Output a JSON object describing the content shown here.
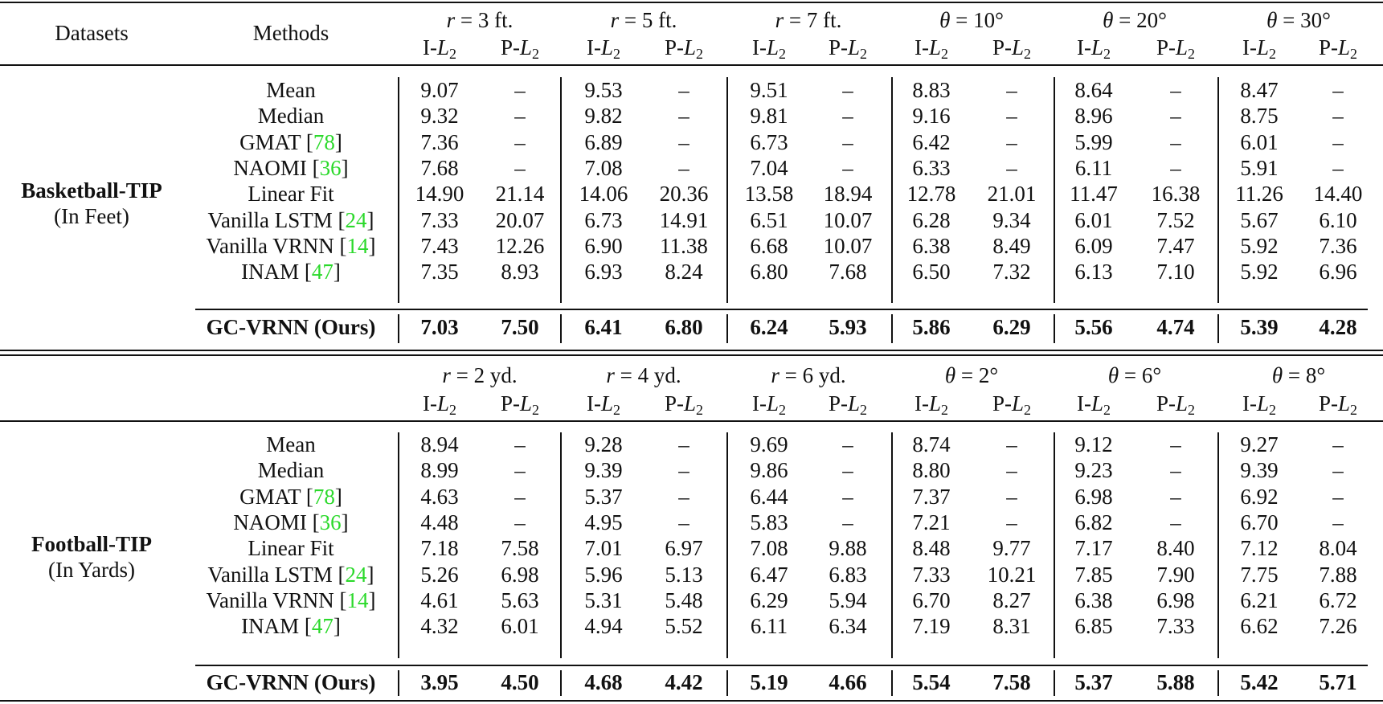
{
  "header": {
    "datasets": "Datasets",
    "methods": "Methods",
    "metric_i": "I-",
    "metric_p": "P-",
    "metric_var": "L",
    "metric_sub": "2"
  },
  "sections": [
    {
      "dataset_name": "Basketball-TIP",
      "dataset_unit": "(In Feet)",
      "columns": [
        {
          "var": "r",
          "rest": " = 3 ft."
        },
        {
          "var": "r",
          "rest": " = 5 ft."
        },
        {
          "var": "r",
          "rest": " = 7 ft."
        },
        {
          "var": "θ",
          "rest": " = 10°"
        },
        {
          "var": "θ",
          "rest": " = 20°"
        },
        {
          "var": "θ",
          "rest": " = 30°"
        }
      ],
      "rows": [
        {
          "method": "Mean",
          "ref": "",
          "values": [
            "9.07",
            "–",
            "9.53",
            "–",
            "9.51",
            "–",
            "8.83",
            "–",
            "8.64",
            "–",
            "8.47",
            "–"
          ]
        },
        {
          "method": "Median",
          "ref": "",
          "values": [
            "9.32",
            "–",
            "9.82",
            "–",
            "9.81",
            "–",
            "9.16",
            "–",
            "8.96",
            "–",
            "8.75",
            "–"
          ]
        },
        {
          "method": "GMAT ",
          "ref": "78",
          "values": [
            "7.36",
            "–",
            "6.89",
            "–",
            "6.73",
            "–",
            "6.42",
            "–",
            "5.99",
            "–",
            "6.01",
            "–"
          ]
        },
        {
          "method": "NAOMI ",
          "ref": "36",
          "values": [
            "7.68",
            "–",
            "7.08",
            "–",
            "7.04",
            "–",
            "6.33",
            "–",
            "6.11",
            "–",
            "5.91",
            "–"
          ]
        },
        {
          "method": "Linear Fit",
          "ref": "",
          "values": [
            "14.90",
            "21.14",
            "14.06",
            "20.36",
            "13.58",
            "18.94",
            "12.78",
            "21.01",
            "11.47",
            "16.38",
            "11.26",
            "14.40"
          ]
        },
        {
          "method": "Vanilla LSTM ",
          "ref": "24",
          "values": [
            "7.33",
            "20.07",
            "6.73",
            "14.91",
            "6.51",
            "10.07",
            "6.28",
            "9.34",
            "6.01",
            "7.52",
            "5.67",
            "6.10"
          ]
        },
        {
          "method": "Vanilla VRNN ",
          "ref": "14",
          "values": [
            "7.43",
            "12.26",
            "6.90",
            "11.38",
            "6.68",
            "10.07",
            "6.38",
            "8.49",
            "6.09",
            "7.47",
            "5.92",
            "7.36"
          ]
        },
        {
          "method": "INAM ",
          "ref": "47",
          "values": [
            "7.35",
            "8.93",
            "6.93",
            "8.24",
            "6.80",
            "7.68",
            "6.50",
            "7.32",
            "6.13",
            "7.10",
            "5.92",
            "6.96"
          ]
        }
      ],
      "ours": {
        "method": "GC-VRNN",
        "suffix": "(Ours)",
        "values": [
          "7.03",
          "7.50",
          "6.41",
          "6.80",
          "6.24",
          "5.93",
          "5.86",
          "6.29",
          "5.56",
          "4.74",
          "5.39",
          "4.28"
        ]
      }
    },
    {
      "dataset_name": "Football-TIP",
      "dataset_unit": "(In Yards)",
      "columns": [
        {
          "var": "r",
          "rest": " = 2 yd."
        },
        {
          "var": "r",
          "rest": " = 4 yd."
        },
        {
          "var": "r",
          "rest": " = 6 yd."
        },
        {
          "var": "θ",
          "rest": " = 2°"
        },
        {
          "var": "θ",
          "rest": " = 6°"
        },
        {
          "var": "θ",
          "rest": " = 8°"
        }
      ],
      "rows": [
        {
          "method": "Mean",
          "ref": "",
          "values": [
            "8.94",
            "–",
            "9.28",
            "–",
            "9.69",
            "–",
            "8.74",
            "–",
            "9.12",
            "–",
            "9.27",
            "–"
          ]
        },
        {
          "method": "Median",
          "ref": "",
          "values": [
            "8.99",
            "–",
            "9.39",
            "–",
            "9.86",
            "–",
            "8.80",
            "–",
            "9.23",
            "–",
            "9.39",
            "–"
          ]
        },
        {
          "method": "GMAT ",
          "ref": "78",
          "values": [
            "4.63",
            "–",
            "5.37",
            "–",
            "6.44",
            "–",
            "7.37",
            "–",
            "6.98",
            "–",
            "6.92",
            "–"
          ]
        },
        {
          "method": "NAOMI ",
          "ref": "36",
          "values": [
            "4.48",
            "–",
            "4.95",
            "–",
            "5.83",
            "–",
            "7.21",
            "–",
            "6.82",
            "–",
            "6.70",
            "–"
          ]
        },
        {
          "method": "Linear Fit",
          "ref": "",
          "values": [
            "7.18",
            "7.58",
            "7.01",
            "6.97",
            "7.08",
            "9.88",
            "8.48",
            "9.77",
            "7.17",
            "8.40",
            "7.12",
            "8.04"
          ]
        },
        {
          "method": "Vanilla LSTM ",
          "ref": "24",
          "values": [
            "5.26",
            "6.98",
            "5.96",
            "5.13",
            "6.47",
            "6.83",
            "7.33",
            "10.21",
            "7.85",
            "7.90",
            "7.75",
            "7.88"
          ]
        },
        {
          "method": "Vanilla VRNN ",
          "ref": "14",
          "values": [
            "4.61",
            "5.63",
            "5.31",
            "5.48",
            "6.29",
            "5.94",
            "6.70",
            "8.27",
            "6.38",
            "6.98",
            "6.21",
            "6.72"
          ]
        },
        {
          "method": "INAM ",
          "ref": "47",
          "values": [
            "4.32",
            "6.01",
            "4.94",
            "5.52",
            "6.11",
            "6.34",
            "7.19",
            "8.31",
            "6.85",
            "7.33",
            "6.62",
            "7.26"
          ]
        }
      ],
      "ours": {
        "method": "GC-VRNN",
        "suffix": "(Ours)",
        "values": [
          "3.95",
          "4.50",
          "4.68",
          "4.42",
          "5.19",
          "4.66",
          "5.54",
          "7.58",
          "5.37",
          "5.88",
          "5.42",
          "5.71"
        ]
      }
    }
  ]
}
